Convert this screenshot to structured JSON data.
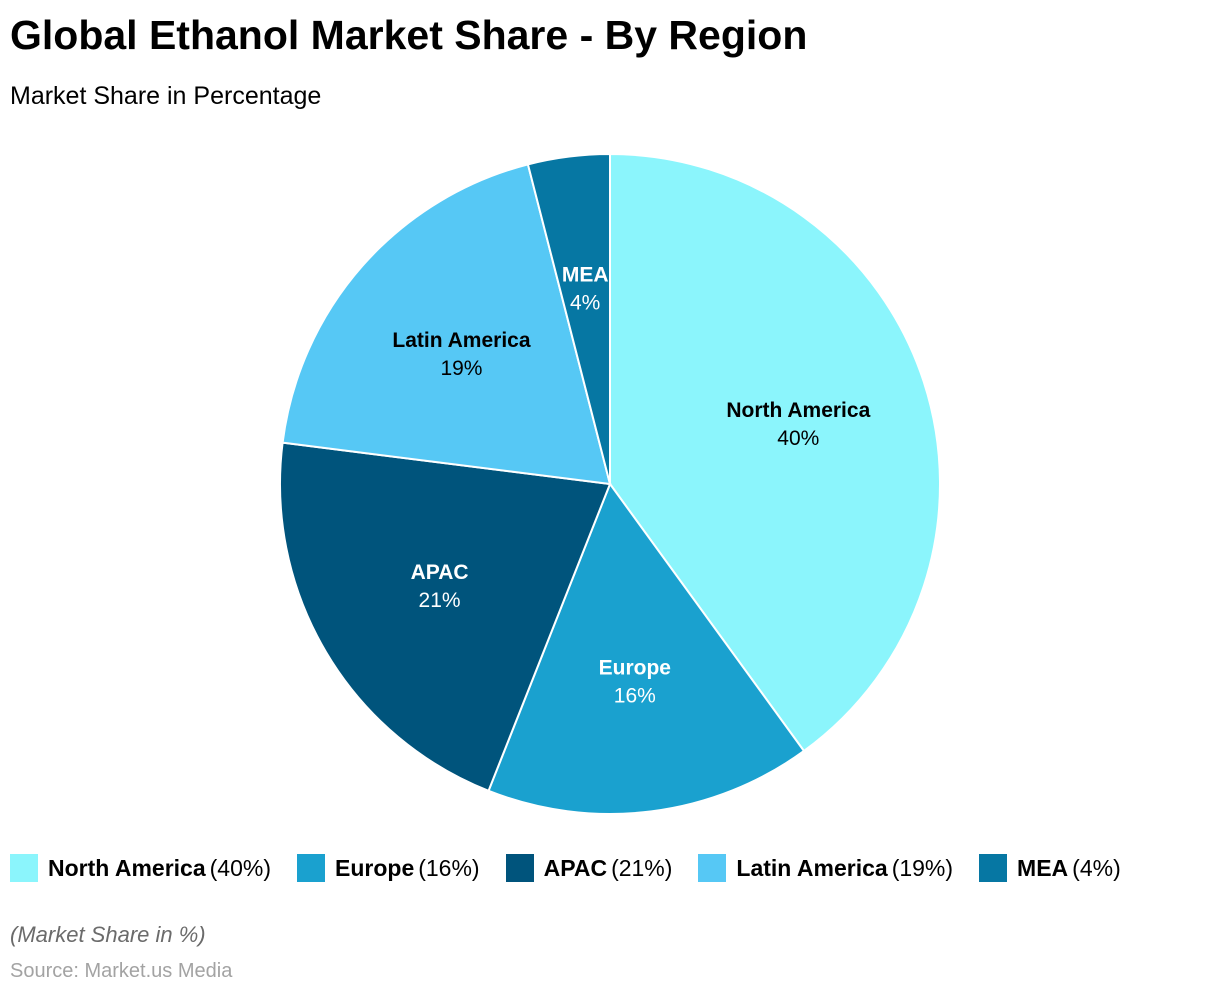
{
  "chart_data": {
    "type": "pie",
    "title": "Global Ethanol Market Share - By Region",
    "subtitle": "Market Share in Percentage",
    "unit": "%",
    "categories": [
      "North America",
      "Europe",
      "APAC",
      "Latin America",
      "MEA"
    ],
    "values": [
      40,
      16,
      21,
      19,
      4
    ],
    "labels": [
      "40%",
      "16%",
      "21%",
      "19%",
      "4%"
    ],
    "legend_labels": [
      "(40%)",
      "(16%)",
      "(21%)",
      "(19%)",
      "(4%)"
    ],
    "colors": [
      "#8BF5FC",
      "#1AA1CF",
      "#00547C",
      "#56C8F5",
      "#0677A3"
    ],
    "label_colors": [
      "#000000",
      "#ffffff",
      "#ffffff",
      "#000000",
      "#ffffff"
    ],
    "start_angle_deg": 0,
    "direction": "clockwise",
    "legend_position": "bottom"
  },
  "note": "(Market Share in %)",
  "source": "Source: Market.us Media"
}
